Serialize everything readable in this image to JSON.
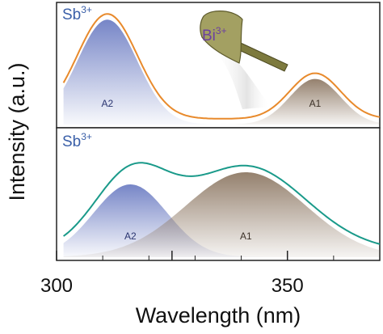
{
  "chart_data": [
    {
      "type": "area",
      "panel": "top",
      "title": "",
      "ion_label": {
        "base": "Sb",
        "sup": "3+"
      },
      "annotation": {
        "base": "Bi",
        "sup": "3+",
        "icon": "axe-icon"
      },
      "xlabel": "Wavelength (nm)",
      "ylabel": "Intensity (a.u.)",
      "xlim": [
        300,
        370
      ],
      "ylim": [
        0,
        1
      ],
      "grid": false,
      "legend": "none",
      "bands": [
        {
          "name": "A2",
          "center": 311,
          "width": 6.5,
          "height": 0.92,
          "color": "#6f7fc4"
        },
        {
          "name": "A1",
          "center": 356,
          "width": 5.5,
          "height": 0.4,
          "color": "#8f7a66"
        }
      ],
      "envelope": {
        "color": "#e88a2c",
        "baseline": 0.05
      }
    },
    {
      "type": "area",
      "panel": "bottom",
      "title": "",
      "ion_label": {
        "base": "Sb",
        "sup": "3+"
      },
      "xlabel": "Wavelength (nm)",
      "ylabel": "Intensity (a.u.)",
      "xlim": [
        300,
        370
      ],
      "ylim": [
        0,
        1
      ],
      "grid": false,
      "legend": "none",
      "bands": [
        {
          "name": "A2",
          "center": 316,
          "width": 8,
          "height": 0.6,
          "color": "#6f7fc4"
        },
        {
          "name": "A1",
          "center": 341,
          "width": 13,
          "height": 0.7,
          "color": "#8f7a66"
        }
      ],
      "envelope": {
        "color": "#1a9a8a",
        "baseline": 0.05
      }
    }
  ],
  "axes": {
    "xlabel": "Wavelength (nm)",
    "ylabel": "Intensity (a.u.)",
    "xticks": [
      300,
      350
    ]
  },
  "colors": {
    "frame": "#222222",
    "ion_label": "#3a5fa8",
    "bi_label": "#6b3fa0"
  }
}
